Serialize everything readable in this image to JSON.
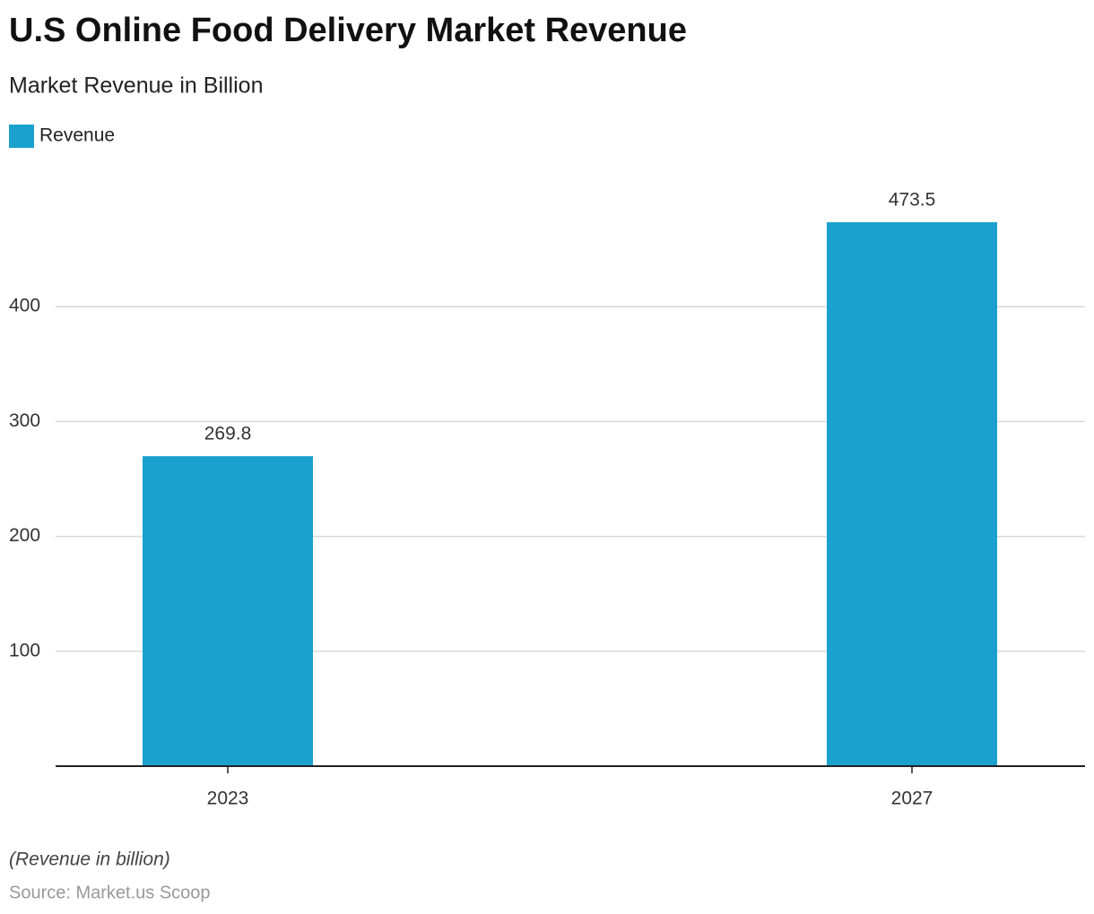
{
  "chart_data": {
    "type": "bar",
    "title": "U.S Online Food Delivery Market Revenue",
    "subtitle": "Market Revenue in Billion",
    "categories": [
      "2023",
      "2027"
    ],
    "series": [
      {
        "name": "Revenue",
        "color": "#1aa1ce",
        "values": [
          269.8,
          473.5
        ]
      }
    ],
    "ylim": [
      0,
      500
    ],
    "yticks": [
      100,
      200,
      300,
      400
    ],
    "grid": true,
    "note": "(Revenue in billion)",
    "source": "Source: Market.us Scoop"
  }
}
